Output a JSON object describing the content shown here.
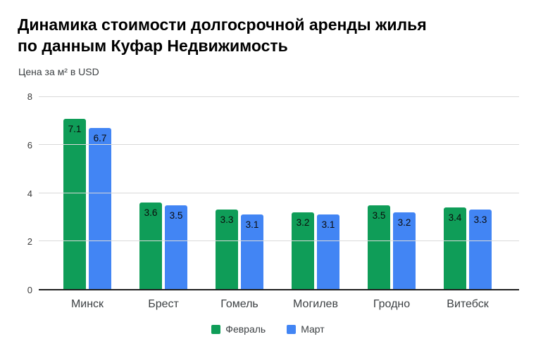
{
  "header": {
    "title_line1": "Динамика стоимости долгосрочной аренды жилья",
    "title_line2": "по данным Куфар Недвижимость",
    "subtitle": "Цена за м² в USD"
  },
  "chart_data": {
    "type": "bar",
    "title": "Динамика стоимости долгосрочной аренды жилья по данным Куфар Недвижимость",
    "subtitle": "Цена за м² в USD",
    "categories": [
      "Минск",
      "Брест",
      "Гомель",
      "Могилев",
      "Гродно",
      "Витебск"
    ],
    "series": [
      {
        "name": "Февраль",
        "color": "#0f9d58",
        "values": [
          7.1,
          3.6,
          3.3,
          3.2,
          3.5,
          3.4
        ]
      },
      {
        "name": "Март",
        "color": "#4285f4",
        "values": [
          6.7,
          3.5,
          3.1,
          3.1,
          3.2,
          3.3
        ]
      }
    ],
    "xlabel": "",
    "ylabel": "",
    "ylim": [
      0,
      8
    ],
    "yticks": [
      0,
      2,
      4,
      6,
      8
    ],
    "grid": true,
    "legend_position": "bottom",
    "value_labels": true,
    "colors": {
      "gridline": "#d9d9d9",
      "baseline": "#1f1f1f",
      "text": "#3c4043",
      "value_label": "#0b0b0b"
    }
  }
}
